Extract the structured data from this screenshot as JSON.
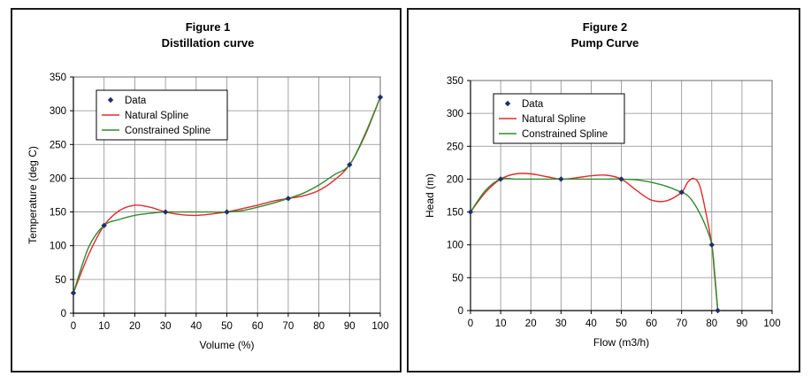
{
  "chart_data": [
    {
      "type": "line",
      "title": "Figure 1",
      "subtitle": "Distillation curve",
      "xlabel": "Volume (%)",
      "ylabel": "Temperature (deg C)",
      "xlim": [
        0,
        100
      ],
      "ylim": [
        0,
        350
      ],
      "x_ticks": [
        0,
        10,
        20,
        30,
        40,
        50,
        60,
        70,
        80,
        90,
        100
      ],
      "y_ticks": [
        0,
        50,
        100,
        150,
        200,
        250,
        300,
        350
      ],
      "grid": true,
      "legend_position": "top-left",
      "series": [
        {
          "name": "Data",
          "kind": "markers",
          "color": "#1f2f6b",
          "x": [
            0,
            10,
            30,
            50,
            70,
            90,
            100
          ],
          "y": [
            30,
            130,
            150,
            150,
            170,
            220,
            320
          ]
        },
        {
          "name": "Natural Spline",
          "kind": "line",
          "color": "#e32b2b",
          "x": [
            0,
            5,
            10,
            15,
            20,
            25,
            30,
            35,
            40,
            45,
            50,
            55,
            60,
            65,
            70,
            75,
            80,
            85,
            90,
            95,
            100
          ],
          "y": [
            30,
            87,
            130,
            152,
            160,
            157,
            150,
            146,
            145,
            147,
            150,
            155,
            160,
            166,
            170,
            174,
            182,
            197,
            220,
            263,
            320
          ]
        },
        {
          "name": "Constrained Spline",
          "kind": "line",
          "color": "#2e8b2e",
          "x": [
            0,
            5,
            10,
            15,
            20,
            25,
            30,
            35,
            40,
            45,
            50,
            55,
            60,
            65,
            70,
            75,
            80,
            85,
            90,
            95,
            100
          ],
          "y": [
            30,
            98,
            130,
            139,
            145,
            148,
            150,
            150,
            150,
            150,
            150,
            152,
            157,
            163,
            170,
            178,
            190,
            205,
            220,
            265,
            320
          ]
        }
      ]
    },
    {
      "type": "line",
      "title": "Figure 2",
      "subtitle": "Pump Curve",
      "xlabel": "Flow (m3/h)",
      "ylabel": "Head (m)",
      "xlim": [
        0,
        100
      ],
      "ylim": [
        0,
        350
      ],
      "x_ticks": [
        0,
        10,
        20,
        30,
        40,
        50,
        60,
        70,
        80,
        90,
        100
      ],
      "y_ticks": [
        0,
        50,
        100,
        150,
        200,
        250,
        300,
        350
      ],
      "grid": true,
      "legend_position": "top-left",
      "series": [
        {
          "name": "Data",
          "kind": "markers",
          "color": "#1f2f6b",
          "x": [
            0,
            10,
            30,
            50,
            70,
            80,
            82
          ],
          "y": [
            150,
            200,
            200,
            200,
            180,
            100,
            0
          ]
        },
        {
          "name": "Natural Spline",
          "kind": "line",
          "color": "#e32b2b",
          "x": [
            0,
            5,
            10,
            15,
            20,
            25,
            30,
            35,
            40,
            45,
            50,
            55,
            60,
            65,
            70,
            72,
            74,
            76,
            78,
            80,
            81,
            82
          ],
          "y": [
            150,
            180,
            200,
            208,
            208,
            204,
            200,
            202,
            205,
            206,
            200,
            183,
            168,
            167,
            180,
            195,
            201,
            190,
            150,
            100,
            50,
            0
          ]
        },
        {
          "name": "Constrained Spline",
          "kind": "line",
          "color": "#2e8b2e",
          "x": [
            0,
            5,
            10,
            15,
            20,
            25,
            30,
            35,
            40,
            45,
            50,
            55,
            60,
            65,
            70,
            72,
            74,
            76,
            78,
            80,
            81,
            82
          ],
          "y": [
            150,
            183,
            200,
            200,
            200,
            200,
            200,
            200,
            200,
            200,
            200,
            199,
            195,
            189,
            180,
            175,
            164,
            148,
            128,
            100,
            55,
            0
          ]
        }
      ]
    }
  ]
}
